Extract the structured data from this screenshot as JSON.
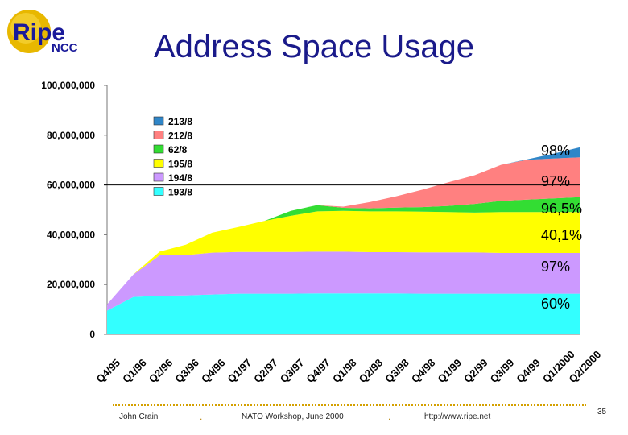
{
  "slide": {
    "title": "Address Space Usage",
    "page_number": "35"
  },
  "logo": {
    "main_text": "Ripe",
    "sub_text": "NCC",
    "colors": {
      "circle": "#e8b800",
      "text": "#1a1a9a"
    }
  },
  "footer": {
    "author": "John Crain",
    "event": "NATO Workshop, June 2000",
    "url": "http://www.ripe.net",
    "separator": ".",
    "line_color": "#d4a000"
  },
  "chart_data": {
    "type": "area",
    "stacked": true,
    "ylim": [
      0,
      100000000
    ],
    "yticks": [
      "0",
      "20,000,000",
      "40,000,000",
      "60,000,000",
      "80,000,000",
      "100,000,000"
    ],
    "ytick_values": [
      0,
      20000000,
      40000000,
      60000000,
      80000000,
      100000000
    ],
    "reference_line": 60000000,
    "legend_position": "top-left",
    "categories": [
      "Q4/95",
      "Q1/96",
      "Q2/96",
      "Q3/96",
      "Q4/96",
      "Q1/97",
      "Q2/97",
      "Q3/97",
      "Q4/97",
      "Q1/98",
      "Q2/98",
      "Q3/98",
      "Q4/98",
      "Q1/99",
      "Q2/99",
      "Q3/99",
      "Q4/99",
      "Q1/2000",
      "Q2/2000"
    ],
    "series": [
      {
        "name": "193/8",
        "color": "#33ffff",
        "values": [
          9500000,
          15000000,
          15500000,
          15600000,
          16000000,
          16300000,
          16300000,
          16300000,
          16400000,
          16400000,
          16400000,
          16400000,
          16300000,
          16300000,
          16300000,
          16300000,
          16300000,
          16300000,
          16300000
        ]
      },
      {
        "name": "194/8",
        "color": "#cc99ff",
        "values": [
          2500000,
          9000000,
          16200000,
          16200000,
          16800000,
          16800000,
          16800000,
          16800000,
          16800000,
          16800000,
          16600000,
          16600000,
          16600000,
          16600000,
          16600000,
          16400000,
          16400000,
          16400000,
          16400000
        ]
      },
      {
        "name": "195/8",
        "color": "#ffff00",
        "values": [
          0,
          0,
          1500000,
          4200000,
          8000000,
          10000000,
          12500000,
          14500000,
          16200000,
          16400000,
          16400000,
          16400000,
          16400000,
          16200000,
          16000000,
          16400000,
          16400000,
          16400000,
          16400000
        ]
      },
      {
        "name": "62/8",
        "color": "#33dd33",
        "values": [
          0,
          0,
          0,
          0,
          0,
          0,
          0,
          2000000,
          2500000,
          1200000,
          1200000,
          1500000,
          1800000,
          2500000,
          3500000,
          4500000,
          5000000,
          5500000,
          6000000
        ]
      },
      {
        "name": "212/8",
        "color": "#ff8080",
        "values": [
          0,
          0,
          0,
          0,
          0,
          0,
          0,
          0,
          0,
          500000,
          2500000,
          4500000,
          7000000,
          9500000,
          11500000,
          14500000,
          16000000,
          16000000,
          16000000
        ]
      },
      {
        "name": "213/8",
        "color": "#2f86c8",
        "values": [
          0,
          0,
          0,
          0,
          0,
          0,
          0,
          0,
          0,
          0,
          0,
          0,
          0,
          0,
          0,
          0,
          200000,
          2000000,
          4000000
        ]
      }
    ],
    "annotations": [
      "98%",
      "97%",
      "96,5%",
      "40,1%",
      "97%",
      "60%"
    ]
  }
}
